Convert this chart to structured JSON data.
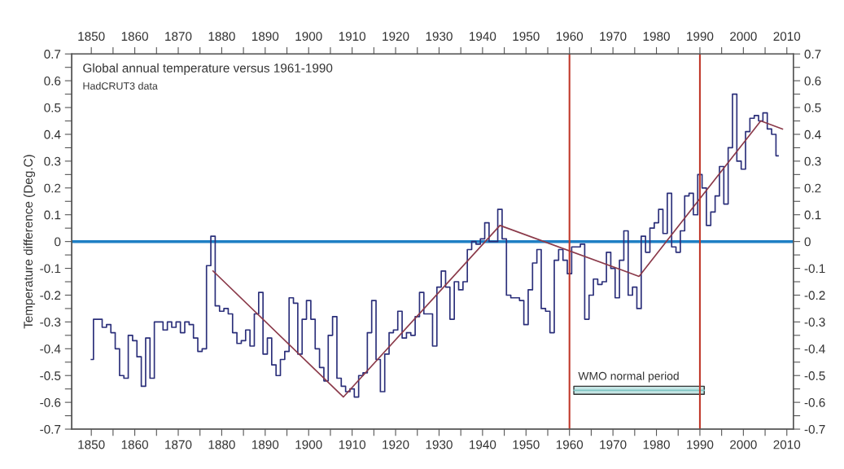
{
  "chart_data": {
    "type": "step",
    "title": "Global annual temperature versus 1961-1990",
    "subtitle": "HadCRUT3 data",
    "ylabel": "Temperature difference (Deg.C)",
    "x": [
      1850,
      1851,
      1852,
      1853,
      1854,
      1855,
      1856,
      1857,
      1858,
      1859,
      1860,
      1861,
      1862,
      1863,
      1864,
      1865,
      1866,
      1867,
      1868,
      1869,
      1870,
      1871,
      1872,
      1873,
      1874,
      1875,
      1876,
      1877,
      1878,
      1879,
      1880,
      1881,
      1882,
      1883,
      1884,
      1885,
      1886,
      1887,
      1888,
      1889,
      1890,
      1891,
      1892,
      1893,
      1894,
      1895,
      1896,
      1897,
      1898,
      1899,
      1900,
      1901,
      1902,
      1903,
      1904,
      1905,
      1906,
      1907,
      1908,
      1909,
      1910,
      1911,
      1912,
      1913,
      1914,
      1915,
      1916,
      1917,
      1918,
      1919,
      1920,
      1921,
      1922,
      1923,
      1924,
      1925,
      1926,
      1927,
      1928,
      1929,
      1930,
      1931,
      1932,
      1933,
      1934,
      1935,
      1936,
      1937,
      1938,
      1939,
      1940,
      1941,
      1942,
      1943,
      1944,
      1945,
      1946,
      1947,
      1948,
      1949,
      1950,
      1951,
      1952,
      1953,
      1954,
      1955,
      1956,
      1957,
      1958,
      1959,
      1960,
      1961,
      1962,
      1963,
      1964,
      1965,
      1966,
      1967,
      1968,
      1969,
      1970,
      1971,
      1972,
      1973,
      1974,
      1975,
      1976,
      1977,
      1978,
      1979,
      1980,
      1981,
      1982,
      1983,
      1984,
      1985,
      1986,
      1987,
      1988,
      1989,
      1990,
      1991,
      1992,
      1993,
      1994,
      1995,
      1996,
      1997,
      1998,
      1999,
      2000,
      2001,
      2002,
      2003,
      2004,
      2005,
      2006,
      2007,
      2008
    ],
    "series": [
      {
        "color": "#2b2f7a",
        "values": [
          -0.44,
          -0.29,
          -0.29,
          -0.32,
          -0.31,
          -0.34,
          -0.4,
          -0.5,
          -0.51,
          -0.35,
          -0.37,
          -0.43,
          -0.54,
          -0.36,
          -0.51,
          -0.3,
          -0.3,
          -0.33,
          -0.3,
          -0.32,
          -0.3,
          -0.34,
          -0.3,
          -0.31,
          -0.36,
          -0.41,
          -0.4,
          -0.09,
          0.02,
          -0.24,
          -0.26,
          -0.25,
          -0.27,
          -0.34,
          -0.38,
          -0.37,
          -0.33,
          -0.39,
          -0.27,
          -0.19,
          -0.42,
          -0.36,
          -0.46,
          -0.5,
          -0.44,
          -0.41,
          -0.21,
          -0.23,
          -0.42,
          -0.29,
          -0.22,
          -0.29,
          -0.4,
          -0.47,
          -0.52,
          -0.35,
          -0.28,
          -0.51,
          -0.54,
          -0.56,
          -0.55,
          -0.58,
          -0.5,
          -0.49,
          -0.34,
          -0.22,
          -0.44,
          -0.56,
          -0.42,
          -0.34,
          -0.33,
          -0.26,
          -0.36,
          -0.34,
          -0.35,
          -0.28,
          -0.19,
          -0.27,
          -0.27,
          -0.39,
          -0.17,
          -0.11,
          -0.17,
          -0.29,
          -0.15,
          -0.18,
          -0.15,
          -0.03,
          0.0,
          -0.01,
          0.01,
          0.07,
          0.0,
          0.0,
          0.12,
          0.01,
          -0.2,
          -0.21,
          -0.21,
          -0.22,
          -0.31,
          -0.18,
          -0.08,
          -0.03,
          -0.25,
          -0.26,
          -0.34,
          -0.07,
          -0.03,
          -0.07,
          -0.12,
          -0.02,
          -0.02,
          -0.01,
          -0.29,
          -0.2,
          -0.14,
          -0.16,
          -0.15,
          -0.04,
          -0.1,
          -0.21,
          -0.07,
          0.04,
          -0.2,
          -0.17,
          -0.25,
          0.02,
          -0.04,
          0.05,
          0.07,
          0.12,
          0.03,
          0.18,
          -0.02,
          -0.04,
          0.04,
          0.17,
          0.18,
          0.1,
          0.25,
          0.2,
          0.06,
          0.11,
          0.17,
          0.28,
          0.14,
          0.35,
          0.55,
          0.3,
          0.27,
          0.41,
          0.46,
          0.47,
          0.45,
          0.48,
          0.42,
          0.4,
          0.32
        ]
      },
      {
        "type": "line",
        "color": "#8b3a4a",
        "x": [
          1878,
          1908,
          1944,
          1976,
          2004,
          2009
        ],
        "values": [
          -0.11,
          -0.58,
          0.06,
          -0.13,
          0.45,
          0.42
        ]
      },
      {
        "type": "line",
        "color": "#7fc6c4",
        "x": [
          1961,
          1991
        ],
        "values": [
          -0.555,
          -0.555
        ],
        "lower": [
          -0.57,
          -0.57
        ],
        "upper": [
          -0.54,
          -0.54
        ]
      }
    ],
    "ref_lines": [
      {
        "axis": "y",
        "value": 0,
        "color": "#1f7fc4"
      },
      {
        "axis": "x",
        "value": 1960,
        "color": "#c0392b"
      },
      {
        "axis": "x",
        "value": 1990,
        "color": "#c0392b"
      }
    ],
    "annotations": [
      {
        "text": "WMO normal period",
        "x": 1961,
        "y": -0.54
      }
    ],
    "xlim": [
      1845.5,
      2011.5
    ],
    "xticks": [
      1850,
      {
        "value": 1855,
        "label": null
      },
      1860,
      {
        "value": 1865,
        "label": null
      },
      1870,
      {
        "value": 1875,
        "label": null
      },
      1880,
      {
        "value": 1885,
        "label": null
      },
      1890,
      {
        "value": 1895,
        "label": null
      },
      1900,
      {
        "value": 1905,
        "label": null
      },
      1910,
      {
        "value": 1915,
        "label": null
      },
      1920,
      {
        "value": 1925,
        "label": null
      },
      1930,
      {
        "value": 1935,
        "label": null
      },
      1940,
      {
        "value": 1945,
        "label": null
      },
      1950,
      {
        "value": 1955,
        "label": null
      },
      1960,
      {
        "value": 1965,
        "label": null
      },
      1970,
      {
        "value": 1975,
        "label": null
      },
      1980,
      {
        "value": 1985,
        "label": null
      },
      1990,
      {
        "value": 1995,
        "label": null
      },
      2000,
      {
        "value": 2005,
        "label": null
      },
      2010
    ],
    "x2lim": [
      1845.5,
      2011.5
    ],
    "x2ticks": [
      1850,
      {
        "value": 1855,
        "label": null
      },
      1860,
      {
        "value": 1865,
        "label": null
      },
      1870,
      {
        "value": 1875,
        "label": null
      },
      1880,
      {
        "value": 1885,
        "label": null
      },
      1890,
      {
        "value": 1895,
        "label": null
      },
      1900,
      {
        "value": 1905,
        "label": null
      },
      1910,
      {
        "value": 1915,
        "label": null
      },
      1920,
      {
        "value": 1925,
        "label": null
      },
      1930,
      {
        "value": 1935,
        "label": null
      },
      1940,
      {
        "value": 1945,
        "label": null
      },
      1950,
      {
        "value": 1955,
        "label": null
      },
      1960,
      {
        "value": 1965,
        "label": null
      },
      1970,
      {
        "value": 1975,
        "label": null
      },
      1980,
      {
        "value": 1985,
        "label": null
      },
      1990,
      {
        "value": 1995,
        "label": null
      },
      2000,
      {
        "value": 2005,
        "label": null
      },
      2010
    ],
    "ylim": [
      -0.7,
      0.7
    ],
    "yticks": [
      -0.7,
      {
        "value": -0.65,
        "label": null
      },
      -0.6,
      {
        "value": -0.55,
        "label": null
      },
      -0.5,
      {
        "value": -0.45,
        "label": null
      },
      -0.4,
      {
        "value": -0.35,
        "label": null
      },
      -0.3,
      {
        "value": -0.25,
        "label": null
      },
      -0.2,
      {
        "value": -0.15,
        "label": null
      },
      -0.1,
      {
        "value": -0.05,
        "label": null
      },
      0,
      {
        "value": 0.05,
        "label": null
      },
      0.1,
      {
        "value": 0.15,
        "label": null
      },
      0.2,
      {
        "value": 0.25,
        "label": null
      },
      0.3,
      {
        "value": 0.35,
        "label": null
      },
      0.4,
      {
        "value": 0.45,
        "label": null
      },
      0.5,
      {
        "value": 0.55,
        "label": null
      },
      0.6,
      {
        "value": 0.65,
        "label": null
      },
      0.7
    ],
    "y2lim": [
      -0.7,
      0.7
    ],
    "y2ticks": [
      -0.7,
      {
        "value": -0.65,
        "label": null
      },
      -0.6,
      {
        "value": -0.55,
        "label": null
      },
      -0.5,
      {
        "value": -0.45,
        "label": null
      },
      -0.4,
      {
        "value": -0.35,
        "label": null
      },
      -0.3,
      {
        "value": -0.25,
        "label": null
      },
      -0.2,
      {
        "value": -0.15,
        "label": null
      },
      -0.1,
      {
        "value": -0.05,
        "label": null
      },
      0,
      {
        "value": 0.05,
        "label": null
      },
      0.1,
      {
        "value": 0.15,
        "label": null
      },
      0.2,
      {
        "value": 0.25,
        "label": null
      },
      0.3,
      {
        "value": 0.35,
        "label": null
      },
      0.4,
      {
        "value": 0.45,
        "label": null
      },
      0.5,
      {
        "value": 0.55,
        "label": null
      },
      0.6,
      {
        "value": 0.65,
        "label": null
      },
      0.7
    ],
    "grid": false,
    "legend": false,
    "marker": "none",
    "line_style": "solid"
  }
}
